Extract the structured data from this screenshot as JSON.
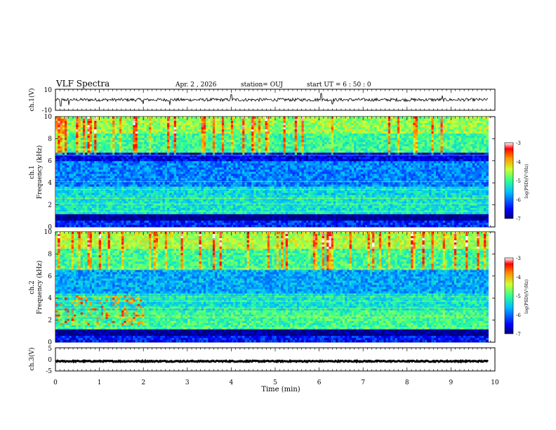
{
  "header": {
    "title": "VLF Spectra",
    "date": "Apr. 2 , 2026",
    "station": "station= OUJ",
    "start": "start UT = 6 : 50 : 0"
  },
  "colorbars": {
    "label": "log(PSD)(V²/Hz)",
    "ticks": [
      "-3",
      "-4",
      "-5",
      "-6",
      "-7"
    ]
  },
  "chart_data": [
    {
      "type": "line",
      "name": "ch.1 waveform",
      "ylabel": "ch.1(V)",
      "ylim": [
        -10,
        10
      ],
      "yticks": [
        "10",
        "-10"
      ],
      "level": 0,
      "noise_amplitude": 1.5,
      "spikes": [
        {
          "t": 0.12,
          "v": -6
        },
        {
          "t": 0.3,
          "v": -5
        },
        {
          "t": 2.0,
          "v": -4
        },
        {
          "t": 2.6,
          "v": -5
        },
        {
          "t": 4.0,
          "v": 5
        },
        {
          "t": 6.05,
          "v": 6
        },
        {
          "t": 6.3,
          "v": -4
        },
        {
          "t": 8.8,
          "v": 4
        }
      ]
    },
    {
      "type": "heatmap",
      "name": "ch.1 spectrogram",
      "ylabel": "ch.1 Frequency (kHz)",
      "ylim": [
        0,
        10
      ],
      "yticks": [
        "0",
        "2",
        "4",
        "6",
        "8",
        "10"
      ],
      "xlim": [
        0,
        9.85
      ],
      "color_range": [
        -7,
        -3
      ],
      "bands": [
        {
          "f": [
            0,
            0.6
          ],
          "level": -6.3
        },
        {
          "f": [
            0.6,
            1.2
          ],
          "level": -7.0
        },
        {
          "f": [
            1.2,
            2.8
          ],
          "level": -5.3
        },
        {
          "f": [
            2.8,
            3.6
          ],
          "level": -5.4
        },
        {
          "f": [
            3.6,
            6.0
          ],
          "level": -5.9
        },
        {
          "f": [
            6.0,
            6.8
          ],
          "level": -6.6
        },
        {
          "f": [
            6.8,
            8.5
          ],
          "level": -5.0
        },
        {
          "f": [
            8.5,
            10
          ],
          "level": -4.6
        }
      ],
      "lines_khz": [
        1.4,
        2.1,
        2.6,
        3.4,
        4.1,
        6.5
      ]
    },
    {
      "type": "heatmap",
      "name": "ch.2 spectrogram",
      "ylabel": "ch.2 Frequency (kHz)",
      "ylim": [
        0,
        10
      ],
      "yticks": [
        "0",
        "2",
        "4",
        "6",
        "8",
        "10"
      ],
      "xlim": [
        0,
        9.85
      ],
      "color_range": [
        -7,
        -3
      ],
      "bands": [
        {
          "f": [
            0,
            0.5
          ],
          "level": -6.4
        },
        {
          "f": [
            0.5,
            1.1
          ],
          "level": -7.0
        },
        {
          "f": [
            1.1,
            2.8
          ],
          "level": -5.0
        },
        {
          "f": [
            2.8,
            4.5
          ],
          "level": -5.3
        },
        {
          "f": [
            4.5,
            6.5
          ],
          "level": -5.7
        },
        {
          "f": [
            6.5,
            8.5
          ],
          "level": -5.0
        },
        {
          "f": [
            8.5,
            10
          ],
          "level": -4.5
        }
      ],
      "lines_khz": [
        1.3,
        2.3,
        3.1,
        3.7,
        4.1,
        6.7
      ],
      "early_feature": {
        "t": [
          0,
          2.0
        ],
        "f": [
          1.5,
          4.3
        ],
        "level": -3.8
      }
    },
    {
      "type": "line",
      "name": "ch.3 waveform",
      "ylabel": "ch.3(V)",
      "ylim": [
        -5,
        5
      ],
      "yticks": [
        "5",
        "0",
        "-5"
      ],
      "level": -0.8,
      "noise_amplitude": 0.25
    }
  ],
  "xaxis": {
    "label": "Time (min)",
    "ticks": [
      "0",
      "1",
      "2",
      "3",
      "4",
      "5",
      "6",
      "7",
      "8",
      "9",
      "10"
    ],
    "xlim": [
      0,
      10
    ]
  }
}
